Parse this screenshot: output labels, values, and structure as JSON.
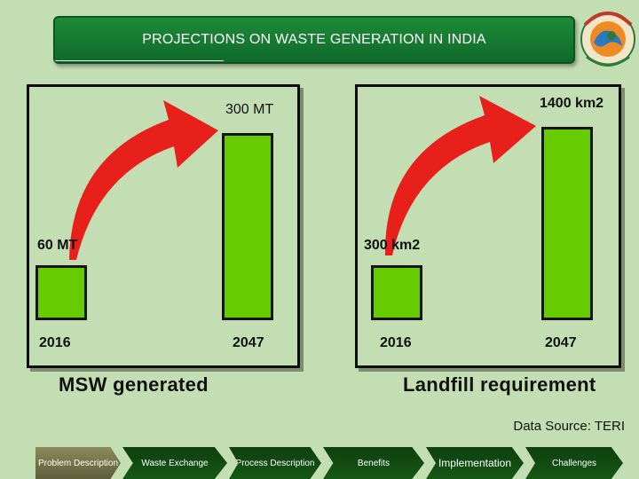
{
  "header": {
    "title": "PROJECTIONS ON WASTE GENERATION IN INDIA",
    "logo_text": "Emblem — Government of India, Ministry"
  },
  "left_panel": {
    "caption": "MSW generated",
    "bar_small": {
      "year": "2016",
      "value_label": "60 MT",
      "value": 60
    },
    "bar_large": {
      "year": "2047",
      "value_label": "300 MT",
      "value": 300
    }
  },
  "right_panel": {
    "caption": "Landfill requirement",
    "bar_small": {
      "year": "2016",
      "value_label": "300 km2",
      "value": 300
    },
    "bar_large": {
      "year": "2047",
      "value_label": "1400 km2",
      "value": 1400
    }
  },
  "source": "Data Source: TERI",
  "nav": {
    "items": [
      {
        "label": "Problem Description"
      },
      {
        "label": "Waste Exchange"
      },
      {
        "label": "Process Description"
      },
      {
        "label": "Benefits"
      },
      {
        "label": "Implementation"
      },
      {
        "label": "Challenges"
      }
    ]
  },
  "colors": {
    "background": "#c4deb4",
    "bar_fill": "#66cc00",
    "arrow": "#e8201c",
    "title_bar": "#1e8a38",
    "nav": "#145814"
  }
}
